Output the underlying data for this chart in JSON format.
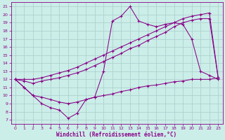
{
  "bg_color": "#cceee8",
  "line_color": "#880088",
  "grid_color": "#aacccc",
  "xlim": [
    -0.5,
    23.5
  ],
  "ylim": [
    6.5,
    21.5
  ],
  "xticks": [
    0,
    1,
    2,
    3,
    4,
    5,
    6,
    7,
    8,
    9,
    10,
    11,
    12,
    13,
    14,
    15,
    16,
    17,
    18,
    19,
    20,
    21,
    22,
    23
  ],
  "yticks": [
    7,
    8,
    9,
    10,
    11,
    12,
    13,
    14,
    15,
    16,
    17,
    18,
    19,
    20,
    21
  ],
  "xlabel": "Windchill (Refroidissement éolien,°C)",
  "line_zigzag_x": [
    0,
    1,
    2,
    3,
    4,
    5,
    6,
    7,
    8,
    9,
    10,
    11,
    12,
    13,
    14,
    15,
    16,
    17,
    18,
    19,
    20,
    21,
    22,
    23
  ],
  "line_zigzag_y": [
    12.0,
    11.0,
    10.0,
    9.0,
    8.5,
    8.2,
    7.2,
    7.8,
    9.5,
    9.8,
    13.0,
    19.2,
    19.8,
    21.0,
    19.2,
    18.8,
    18.5,
    18.8,
    19.0,
    18.8,
    17.0,
    13.0,
    12.5,
    12.0
  ],
  "line_upper1_x": [
    0,
    1,
    2,
    3,
    4,
    5,
    6,
    7,
    8,
    9,
    10,
    11,
    12,
    13,
    14,
    15,
    16,
    17,
    18,
    19,
    20,
    21,
    22,
    23
  ],
  "line_upper1_y": [
    12.0,
    11.8,
    11.5,
    11.8,
    12.0,
    12.2,
    12.5,
    12.8,
    13.2,
    13.7,
    14.2,
    14.7,
    15.2,
    15.8,
    16.2,
    16.8,
    17.3,
    17.8,
    18.5,
    19.0,
    19.3,
    19.5,
    19.5,
    12.2
  ],
  "line_upper2_x": [
    0,
    1,
    2,
    3,
    4,
    5,
    6,
    7,
    8,
    9,
    10,
    11,
    12,
    13,
    14,
    15,
    16,
    17,
    18,
    19,
    20,
    21,
    22,
    23
  ],
  "line_upper2_y": [
    12.0,
    12.0,
    12.0,
    12.2,
    12.5,
    12.8,
    13.1,
    13.5,
    14.0,
    14.5,
    15.0,
    15.5,
    16.0,
    16.5,
    17.0,
    17.5,
    18.0,
    18.5,
    19.0,
    19.5,
    19.8,
    20.0,
    20.2,
    12.2
  ],
  "line_bottom_x": [
    0,
    1,
    2,
    3,
    4,
    5,
    6,
    7,
    8,
    9,
    10,
    11,
    12,
    13,
    14,
    15,
    16,
    17,
    18,
    19,
    20,
    21,
    22,
    23
  ],
  "line_bottom_y": [
    12.0,
    11.0,
    10.0,
    9.8,
    9.5,
    9.2,
    9.0,
    9.2,
    9.5,
    9.8,
    10.0,
    10.2,
    10.5,
    10.7,
    11.0,
    11.2,
    11.3,
    11.5,
    11.7,
    11.8,
    12.0,
    12.0,
    12.0,
    12.2
  ]
}
